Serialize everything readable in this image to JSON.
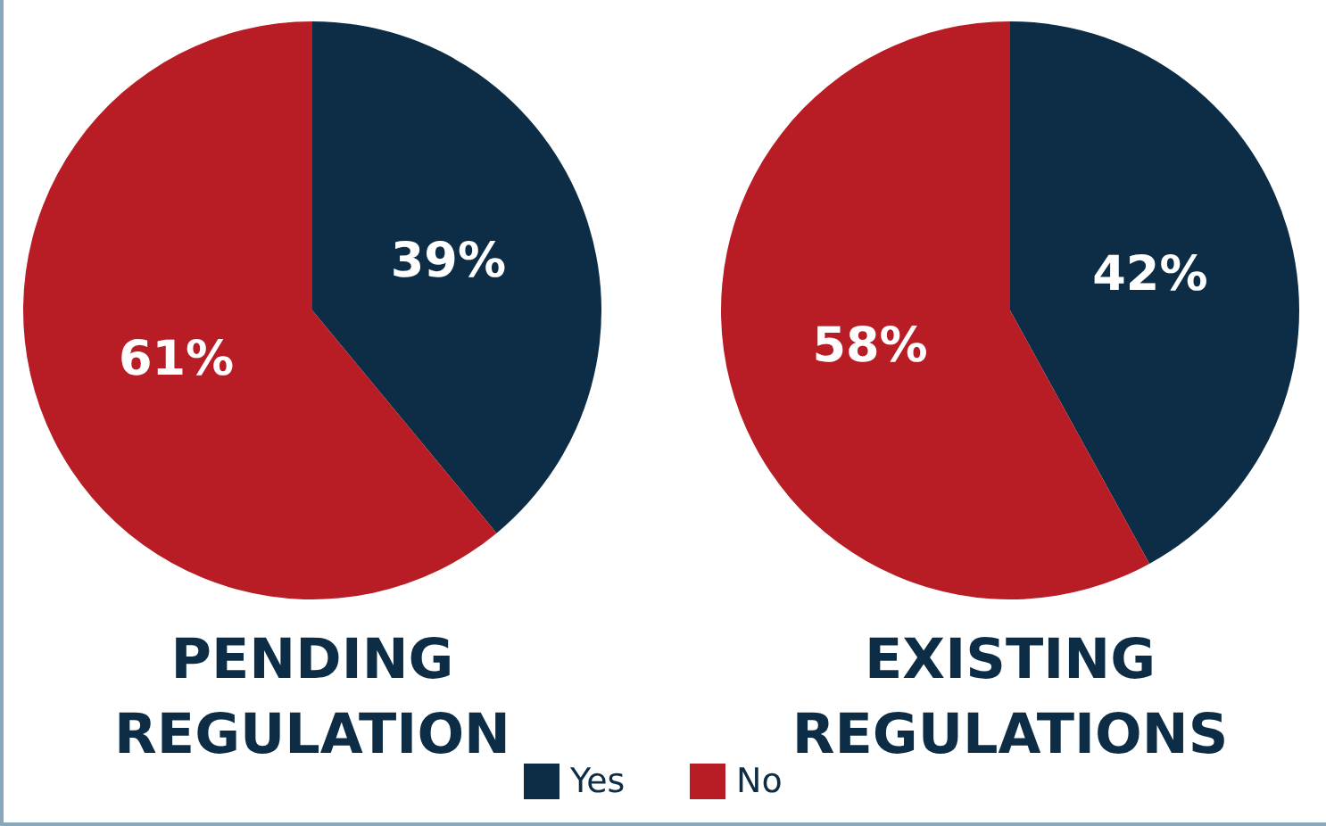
{
  "chart_data": [
    {
      "type": "pie",
      "title": "PENDING\nREGULATION",
      "categories": [
        "Yes",
        "No"
      ],
      "values": [
        39,
        61
      ],
      "value_labels": [
        "39%",
        "61%"
      ],
      "colors": [
        "#0c2d45",
        "#b81c25"
      ],
      "legend": "bottom"
    },
    {
      "type": "pie",
      "title": "EXISTING\nREGULATIONS",
      "categories": [
        null,
        null
      ],
      "values": [
        42,
        58
      ],
      "value_labels": [
        "42%",
        "58%"
      ],
      "colors": [
        "#0c2d45",
        "#b81c25"
      ]
    }
  ]
}
